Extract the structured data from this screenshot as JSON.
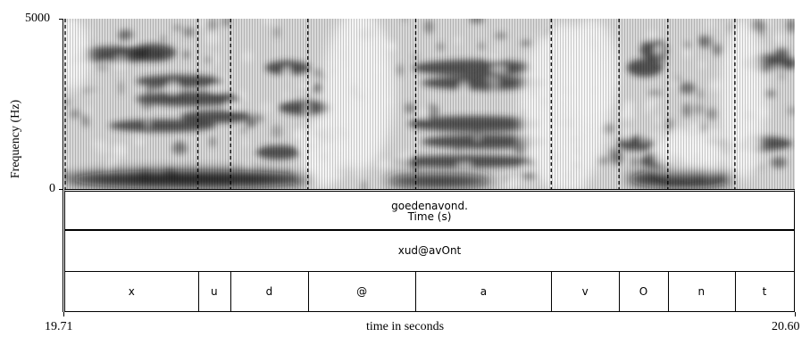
{
  "y_axis": {
    "top_label": "5000",
    "bottom_label": "0",
    "title": "Frequency (Hz)"
  },
  "x_axis": {
    "start_label": "19.71",
    "end_label": "20.60",
    "title": "time in seconds"
  },
  "word_tier": {
    "text": "goedenavond.",
    "sub": "Time (s)"
  },
  "phrase_tier": {
    "text": "xud@avOnt"
  },
  "segments": [
    {
      "label": "x",
      "start": 0.0,
      "end": 0.182
    },
    {
      "label": "u",
      "start": 0.182,
      "end": 0.227
    },
    {
      "label": "d",
      "start": 0.227,
      "end": 0.333
    },
    {
      "label": "@",
      "start": 0.333,
      "end": 0.481
    },
    {
      "label": "a",
      "start": 0.481,
      "end": 0.667
    },
    {
      "label": "v",
      "start": 0.667,
      "end": 0.76
    },
    {
      "label": "O",
      "start": 0.76,
      "end": 0.827
    },
    {
      "label": "n",
      "start": 0.827,
      "end": 0.919
    },
    {
      "label": "t",
      "start": 0.919,
      "end": 1.0
    }
  ],
  "colors": {
    "spectrogram_dark": "#1a1a1a",
    "spectrogram_light": "#f4f4f4"
  }
}
